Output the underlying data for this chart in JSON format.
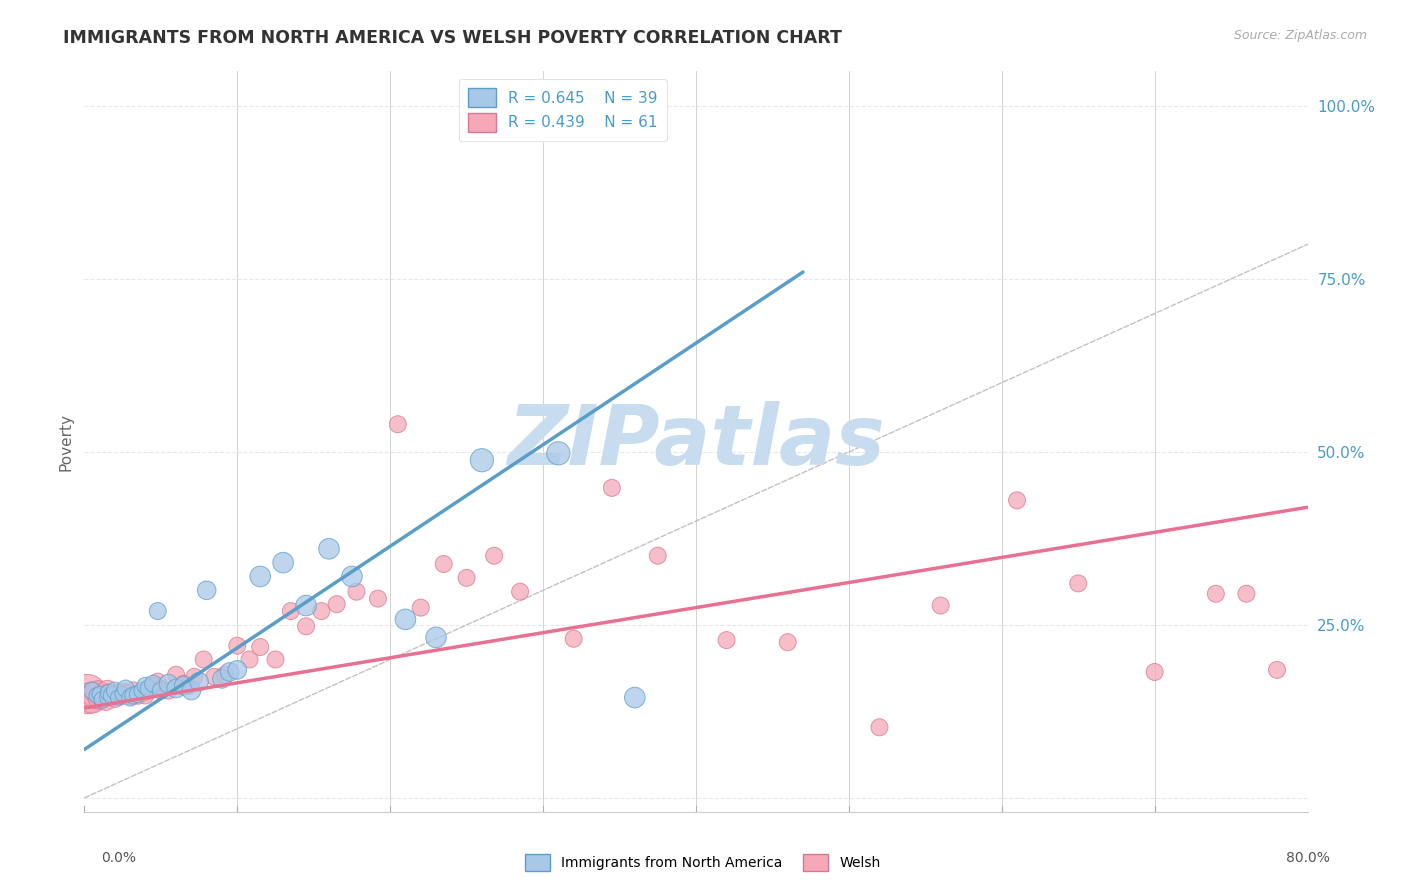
{
  "title": "IMMIGRANTS FROM NORTH AMERICA VS WELSH POVERTY CORRELATION CHART",
  "source": "Source: ZipAtlas.com",
  "ylabel": "Poverty",
  "xlim": [
    0.0,
    0.8
  ],
  "ylim": [
    -0.02,
    1.05
  ],
  "blue_R": 0.645,
  "blue_N": 39,
  "pink_R": 0.439,
  "pink_N": 61,
  "blue_color": "#A8C8E8",
  "pink_color": "#F4A8B8",
  "blue_edge_color": "#5A9EC8",
  "pink_edge_color": "#D87890",
  "blue_line_color": "#5A9EC8",
  "pink_line_color": "#E87090",
  "watermark_color": "#C8DCF0",
  "legend_label_blue": "Immigrants from North America",
  "legend_label_pink": "Welsh",
  "blue_scatter_x": [
    0.005,
    0.008,
    0.01,
    0.012,
    0.015,
    0.016,
    0.018,
    0.02,
    0.022,
    0.025,
    0.027,
    0.03,
    0.032,
    0.035,
    0.038,
    0.04,
    0.042,
    0.045,
    0.048,
    0.05,
    0.055,
    0.06,
    0.065,
    0.07,
    0.075,
    0.08,
    0.09,
    0.095,
    0.1,
    0.115,
    0.13,
    0.145,
    0.16,
    0.175,
    0.21,
    0.23,
    0.26,
    0.31,
    0.36
  ],
  "blue_scatter_y": [
    0.155,
    0.148,
    0.15,
    0.142,
    0.145,
    0.152,
    0.148,
    0.155,
    0.145,
    0.15,
    0.158,
    0.145,
    0.148,
    0.15,
    0.155,
    0.162,
    0.158,
    0.165,
    0.27,
    0.155,
    0.165,
    0.158,
    0.162,
    0.155,
    0.168,
    0.3,
    0.172,
    0.182,
    0.185,
    0.32,
    0.34,
    0.278,
    0.36,
    0.32,
    0.258,
    0.232,
    0.488,
    0.498,
    0.145
  ],
  "blue_scatter_sizes": [
    150,
    120,
    120,
    150,
    120,
    150,
    150,
    150,
    120,
    120,
    150,
    150,
    150,
    150,
    150,
    150,
    150,
    150,
    150,
    150,
    180,
    180,
    180,
    180,
    180,
    180,
    180,
    180,
    180,
    220,
    220,
    220,
    220,
    220,
    220,
    220,
    280,
    280,
    220
  ],
  "pink_scatter_x": [
    0.002,
    0.005,
    0.007,
    0.009,
    0.01,
    0.012,
    0.014,
    0.015,
    0.016,
    0.018,
    0.02,
    0.022,
    0.024,
    0.026,
    0.028,
    0.03,
    0.032,
    0.035,
    0.038,
    0.04,
    0.042,
    0.045,
    0.048,
    0.05,
    0.055,
    0.06,
    0.065,
    0.068,
    0.072,
    0.078,
    0.085,
    0.092,
    0.1,
    0.108,
    0.115,
    0.125,
    0.135,
    0.145,
    0.155,
    0.165,
    0.178,
    0.192,
    0.205,
    0.22,
    0.235,
    0.25,
    0.268,
    0.285,
    0.32,
    0.345,
    0.375,
    0.42,
    0.46,
    0.52,
    0.56,
    0.61,
    0.65,
    0.7,
    0.74,
    0.76,
    0.78
  ],
  "pink_scatter_y": [
    0.15,
    0.145,
    0.148,
    0.152,
    0.145,
    0.148,
    0.142,
    0.155,
    0.15,
    0.148,
    0.145,
    0.15,
    0.148,
    0.152,
    0.15,
    0.148,
    0.155,
    0.148,
    0.152,
    0.148,
    0.155,
    0.162,
    0.168,
    0.158,
    0.155,
    0.178,
    0.165,
    0.162,
    0.175,
    0.2,
    0.175,
    0.178,
    0.22,
    0.2,
    0.218,
    0.2,
    0.27,
    0.248,
    0.27,
    0.28,
    0.298,
    0.288,
    0.54,
    0.275,
    0.338,
    0.318,
    0.35,
    0.298,
    0.23,
    0.448,
    0.35,
    0.228,
    0.225,
    0.102,
    0.278,
    0.43,
    0.31,
    0.182,
    0.295,
    0.295,
    0.185
  ],
  "pink_scatter_sizes": [
    800,
    500,
    350,
    300,
    280,
    260,
    240,
    220,
    200,
    200,
    200,
    200,
    180,
    180,
    180,
    180,
    160,
    160,
    160,
    150,
    150,
    150,
    150,
    150,
    150,
    150,
    150,
    150,
    150,
    150,
    150,
    150,
    150,
    150,
    150,
    150,
    150,
    150,
    150,
    150,
    150,
    150,
    150,
    150,
    150,
    150,
    150,
    150,
    150,
    150,
    150,
    150,
    150,
    150,
    150,
    150,
    150,
    150,
    150,
    150,
    150
  ],
  "blue_line_x": [
    0.0,
    0.47
  ],
  "blue_line_y": [
    0.07,
    0.76
  ],
  "pink_line_x": [
    0.0,
    0.8
  ],
  "pink_line_y": [
    0.13,
    0.42
  ],
  "ref_line_x": [
    0.0,
    1.0
  ],
  "ref_line_y": [
    0.0,
    1.0
  ],
  "background_color": "#FFFFFF",
  "grid_color": "#E8E8E8",
  "yticks": [
    0.0,
    0.25,
    0.5,
    0.75,
    1.0
  ],
  "ytick_labels": [
    "",
    "25.0%",
    "50.0%",
    "75.0%",
    "100.0%"
  ],
  "xtick_positions": [
    0.0,
    0.1,
    0.2,
    0.3,
    0.4,
    0.5,
    0.6,
    0.7,
    0.8
  ]
}
